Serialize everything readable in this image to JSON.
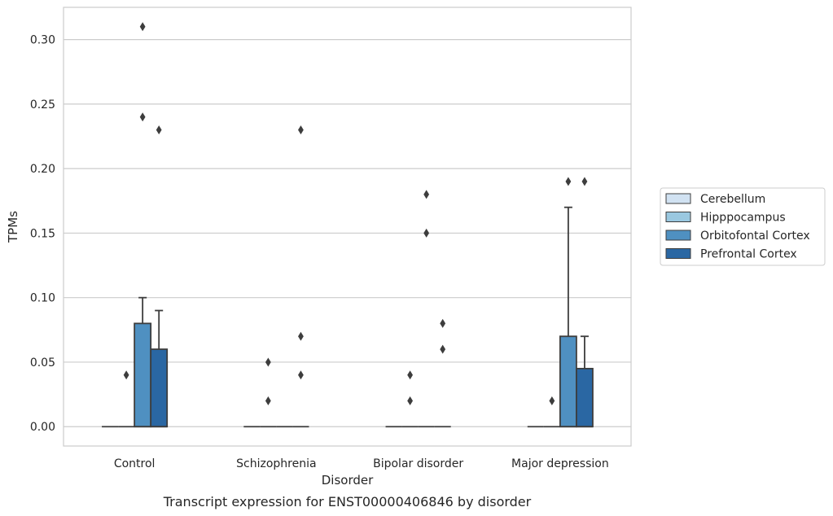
{
  "chart_data": {
    "type": "box",
    "xlabel": "Disorder",
    "ylabel": "TPMs",
    "caption": "Transcript expression for ENST00000406846 by disorder",
    "ylim": [
      -0.015,
      0.325
    ],
    "yticks": [
      "0.00",
      "0.05",
      "0.10",
      "0.15",
      "0.20",
      "0.25",
      "0.30"
    ],
    "categories": [
      "Control",
      "Schizophrenia",
      "Bipolar disorder",
      "Major depression"
    ],
    "legend_position": "right",
    "grid": "horizontal",
    "series": [
      {
        "name": "Cerebellum",
        "color": "#d1e2f2",
        "boxes": [
          {
            "q1": 0,
            "median": 0,
            "q3": 0,
            "whisker_low": 0,
            "whisker_high": 0,
            "outliers": []
          },
          {
            "q1": 0,
            "median": 0,
            "q3": 0,
            "whisker_low": 0,
            "whisker_high": 0,
            "outliers": []
          },
          {
            "q1": 0,
            "median": 0,
            "q3": 0,
            "whisker_low": 0,
            "whisker_high": 0,
            "outliers": []
          },
          {
            "q1": 0,
            "median": 0,
            "q3": 0,
            "whisker_low": 0,
            "whisker_high": 0,
            "outliers": []
          }
        ]
      },
      {
        "name": "Hipppocampus",
        "color": "#9ac8e0",
        "boxes": [
          {
            "q1": 0,
            "median": 0,
            "q3": 0,
            "whisker_low": 0,
            "whisker_high": 0,
            "outliers": [
              0.04
            ]
          },
          {
            "q1": 0,
            "median": 0,
            "q3": 0,
            "whisker_low": 0,
            "whisker_high": 0,
            "outliers": [
              0.05,
              0.02
            ]
          },
          {
            "q1": 0,
            "median": 0,
            "q3": 0,
            "whisker_low": 0,
            "whisker_high": 0,
            "outliers": [
              0.04,
              0.02
            ]
          },
          {
            "q1": 0,
            "median": 0,
            "q3": 0,
            "whisker_low": 0,
            "whisker_high": 0,
            "outliers": [
              0.02
            ]
          }
        ]
      },
      {
        "name": "Orbitofontal Cortex",
        "color": "#4f90c1",
        "boxes": [
          {
            "q1": 0,
            "median": 0,
            "q3": 0.08,
            "whisker_low": 0,
            "whisker_high": 0.1,
            "outliers": [
              0.31,
              0.24
            ]
          },
          {
            "q1": 0,
            "median": 0,
            "q3": 0,
            "whisker_low": 0,
            "whisker_high": 0,
            "outliers": []
          },
          {
            "q1": 0,
            "median": 0,
            "q3": 0,
            "whisker_low": 0,
            "whisker_high": 0,
            "outliers": [
              0.18,
              0.15
            ]
          },
          {
            "q1": 0,
            "median": 0,
            "q3": 0.07,
            "whisker_low": 0,
            "whisker_high": 0.17,
            "outliers": [
              0.19
            ]
          }
        ]
      },
      {
        "name": "Prefrontal Cortex",
        "color": "#2a67a3",
        "boxes": [
          {
            "q1": 0,
            "median": 0,
            "q3": 0.06,
            "whisker_low": 0,
            "whisker_high": 0.09,
            "outliers": [
              0.23
            ]
          },
          {
            "q1": 0,
            "median": 0,
            "q3": 0,
            "whisker_low": 0,
            "whisker_high": 0,
            "outliers": [
              0.23,
              0.07,
              0.04
            ]
          },
          {
            "q1": 0,
            "median": 0,
            "q3": 0,
            "whisker_low": 0,
            "whisker_high": 0,
            "outliers": [
              0.08,
              0.06
            ]
          },
          {
            "q1": 0,
            "median": 0,
            "q3": 0.045,
            "whisker_low": 0,
            "whisker_high": 0.07,
            "outliers": [
              0.19
            ]
          }
        ]
      }
    ]
  }
}
